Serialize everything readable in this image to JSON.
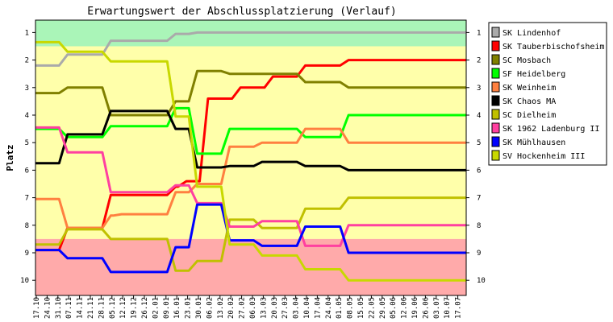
{
  "chart_data": {
    "type": "line",
    "title": "Erwartungswert der Abschlussplatzierung (Verlauf)",
    "ylabel": "Platz",
    "xlabel": "",
    "ylim": [
      0.55,
      10.55
    ],
    "y_inverted": true,
    "y_ticks": [
      "1",
      "2",
      "3",
      "4",
      "5",
      "6",
      "7",
      "8",
      "9",
      "10"
    ],
    "grid": false,
    "legend_position": "right",
    "zones": [
      {
        "from": 0.55,
        "to": 1.5,
        "color": "#aaf5b8"
      },
      {
        "from": 1.5,
        "to": 8.5,
        "color": "#ffffaa"
      },
      {
        "from": 8.5,
        "to": 10.55,
        "color": "#ffaaaa"
      }
    ],
    "x": [
      "17.10",
      "24.10",
      "31.10",
      "07.11",
      "14.11",
      "21.11",
      "28.11",
      "05.12",
      "12.12",
      "19.12",
      "26.12",
      "02.01",
      "09.01",
      "16.01",
      "23.01",
      "30.01",
      "06.02",
      "13.02",
      "20.02",
      "27.02",
      "06.03",
      "13.03",
      "20.03",
      "27.03",
      "03.04",
      "10.04",
      "17.04",
      "24.04",
      "01.05",
      "08.05",
      "15.05",
      "22.05",
      "29.05",
      "05.06",
      "12.06",
      "19.06",
      "26.06",
      "03.07",
      "10.07",
      "17.07"
    ],
    "series": [
      {
        "name": "SK Lindenhof",
        "color": "#aaaaaa",
        "values": [
          2.2,
          2.2,
          2.2,
          1.8,
          1.8,
          1.8,
          1.8,
          1.3,
          1.3,
          1.3,
          1.3,
          1.3,
          1.3,
          1.05,
          1.05,
          1.0,
          1.0,
          1.0,
          1.0,
          1.0,
          1.0,
          1.0,
          1.0,
          1.0,
          1.0,
          1.0,
          1.0,
          1.0,
          1.0,
          1.0,
          1.0,
          1.0,
          1.0,
          1.0,
          1.0,
          1.0,
          1.0,
          1.0,
          1.0,
          1.0
        ]
      },
      {
        "name": "SK Tauberbischofsheim",
        "color": "#ff0000",
        "values": [
          8.9,
          8.9,
          8.9,
          8.1,
          8.1,
          8.1,
          8.1,
          6.9,
          6.9,
          6.9,
          6.9,
          6.9,
          6.9,
          6.6,
          6.4,
          6.4,
          3.4,
          3.4,
          3.4,
          3.0,
          3.0,
          3.0,
          2.6,
          2.6,
          2.6,
          2.2,
          2.2,
          2.2,
          2.2,
          2.0,
          2.0,
          2.0,
          2.0,
          2.0,
          2.0,
          2.0,
          2.0,
          2.0,
          2.0,
          2.0
        ]
      },
      {
        "name": "SC Mosbach",
        "color": "#808000",
        "values": [
          3.2,
          3.2,
          3.2,
          3.0,
          3.0,
          3.0,
          3.0,
          4.0,
          4.0,
          4.0,
          4.0,
          4.0,
          4.0,
          3.5,
          3.5,
          2.4,
          2.4,
          2.4,
          2.5,
          2.5,
          2.5,
          2.5,
          2.5,
          2.5,
          2.5,
          2.8,
          2.8,
          2.8,
          2.8,
          3.0,
          3.0,
          3.0,
          3.0,
          3.0,
          3.0,
          3.0,
          3.0,
          3.0,
          3.0,
          3.0
        ]
      },
      {
        "name": "SF Heidelberg",
        "color": "#00ff00",
        "values": [
          4.5,
          4.5,
          4.5,
          4.8,
          4.8,
          4.8,
          4.8,
          4.4,
          4.4,
          4.4,
          4.4,
          4.4,
          4.4,
          3.75,
          3.75,
          5.4,
          5.4,
          5.4,
          4.5,
          4.5,
          4.5,
          4.5,
          4.5,
          4.5,
          4.5,
          4.8,
          4.8,
          4.8,
          4.8,
          4.0,
          4.0,
          4.0,
          4.0,
          4.0,
          4.0,
          4.0,
          4.0,
          4.0,
          4.0,
          4.0
        ]
      },
      {
        "name": "SK Weinheim",
        "color": "#ff8040",
        "values": [
          7.05,
          7.05,
          7.05,
          8.1,
          8.1,
          8.1,
          8.1,
          7.65,
          7.6,
          7.6,
          7.6,
          7.6,
          7.6,
          6.8,
          6.8,
          6.5,
          6.5,
          6.5,
          5.15,
          5.15,
          5.15,
          5.0,
          5.0,
          5.0,
          5.0,
          4.5,
          4.5,
          4.5,
          4.5,
          5.0,
          5.0,
          5.0,
          5.0,
          5.0,
          5.0,
          5.0,
          5.0,
          5.0,
          5.0,
          5.0
        ]
      },
      {
        "name": "SK Chaos MA",
        "color": "#000000",
        "values": [
          5.75,
          5.75,
          5.75,
          4.7,
          4.7,
          4.7,
          4.7,
          3.85,
          3.85,
          3.85,
          3.85,
          3.85,
          3.85,
          4.5,
          4.5,
          5.9,
          5.9,
          5.9,
          5.85,
          5.85,
          5.85,
          5.7,
          5.7,
          5.7,
          5.7,
          5.85,
          5.85,
          5.85,
          5.85,
          6.0,
          6.0,
          6.0,
          6.0,
          6.0,
          6.0,
          6.0,
          6.0,
          6.0,
          6.0,
          6.0
        ]
      },
      {
        "name": "SC Dielheim",
        "color": "#c0c000",
        "values": [
          8.7,
          8.7,
          8.7,
          8.15,
          8.15,
          8.15,
          8.15,
          8.5,
          8.5,
          8.5,
          8.5,
          8.5,
          8.5,
          9.65,
          9.65,
          9.3,
          9.3,
          9.3,
          7.8,
          7.8,
          7.8,
          8.1,
          8.1,
          8.1,
          8.1,
          7.4,
          7.4,
          7.4,
          7.4,
          7.0,
          7.0,
          7.0,
          7.0,
          7.0,
          7.0,
          7.0,
          7.0,
          7.0,
          7.0,
          7.0
        ]
      },
      {
        "name": "SK 1962 Ladenburg II",
        "color": "#ff40a0",
        "values": [
          4.45,
          4.45,
          4.45,
          5.35,
          5.35,
          5.35,
          5.35,
          6.8,
          6.8,
          6.8,
          6.8,
          6.8,
          6.8,
          6.55,
          6.55,
          7.2,
          7.2,
          7.2,
          8.05,
          8.05,
          8.05,
          7.85,
          7.85,
          7.85,
          7.85,
          8.75,
          8.75,
          8.75,
          8.75,
          8.0,
          8.0,
          8.0,
          8.0,
          8.0,
          8.0,
          8.0,
          8.0,
          8.0,
          8.0,
          8.0
        ]
      },
      {
        "name": "SK Mühlhausen",
        "color": "#0000ff",
        "values": [
          8.9,
          8.9,
          8.9,
          9.2,
          9.2,
          9.2,
          9.2,
          9.7,
          9.7,
          9.7,
          9.7,
          9.7,
          9.7,
          8.8,
          8.8,
          7.25,
          7.25,
          7.25,
          8.55,
          8.55,
          8.55,
          8.75,
          8.75,
          8.75,
          8.75,
          8.05,
          8.05,
          8.05,
          8.05,
          9.0,
          9.0,
          9.0,
          9.0,
          9.0,
          9.0,
          9.0,
          9.0,
          9.0,
          9.0,
          9.0
        ]
      },
      {
        "name": "SV Hockenheim III",
        "color": "#c8d800",
        "values": [
          1.35,
          1.35,
          1.35,
          1.7,
          1.7,
          1.7,
          1.7,
          2.05,
          2.05,
          2.05,
          2.05,
          2.05,
          2.05,
          4.05,
          4.05,
          6.6,
          6.6,
          6.6,
          8.7,
          8.7,
          8.7,
          9.1,
          9.1,
          9.1,
          9.1,
          9.6,
          9.6,
          9.6,
          9.6,
          10.0,
          10.0,
          10.0,
          10.0,
          10.0,
          10.0,
          10.0,
          10.0,
          10.0,
          10.0,
          10.0
        ]
      }
    ]
  }
}
